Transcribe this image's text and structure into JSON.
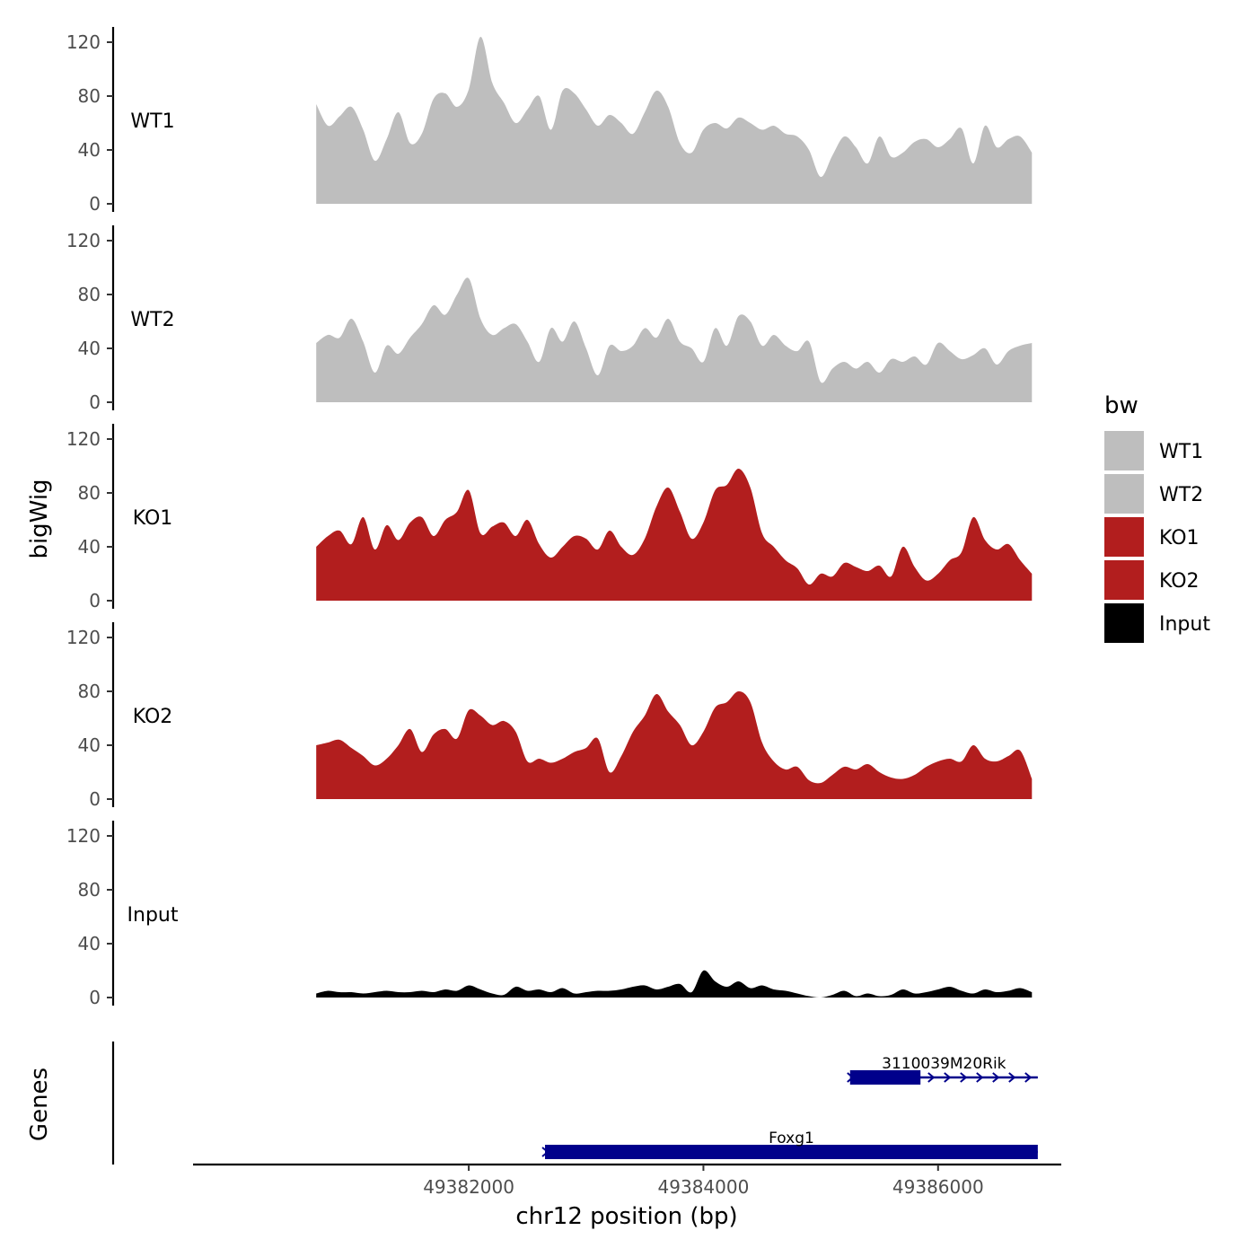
{
  "chart_data": {
    "type": "area",
    "ylabel": "bigWig",
    "xlabel": "chr12 position (bp)",
    "genes_label": "Genes",
    "xlim": [
      49379650,
      49387050
    ],
    "ylim": [
      0,
      125
    ],
    "y_ticks": [
      0,
      40,
      80,
      120
    ],
    "x_ticks": [
      49382000,
      49384000,
      49386000
    ],
    "legend": {
      "title": "bw",
      "placement": "right",
      "entries": [
        {
          "label": "WT1",
          "color": "#bebebe"
        },
        {
          "label": "WT2",
          "color": "#bebebe"
        },
        {
          "label": "KO1",
          "color": "#b21e1e"
        },
        {
          "label": "KO2",
          "color": "#b21e1e"
        },
        {
          "label": "Input",
          "color": "#000000"
        }
      ]
    },
    "x": [
      49380700,
      49380800,
      49380900,
      49381000,
      49381100,
      49381200,
      49381300,
      49381400,
      49381500,
      49381600,
      49381700,
      49381800,
      49381900,
      49382000,
      49382100,
      49382200,
      49382300,
      49382400,
      49382500,
      49382600,
      49382700,
      49382800,
      49382900,
      49383000,
      49383100,
      49383200,
      49383300,
      49383400,
      49383500,
      49383600,
      49383700,
      49383800,
      49383900,
      49384000,
      49384100,
      49384200,
      49384300,
      49384400,
      49384500,
      49384600,
      49384700,
      49384800,
      49384900,
      49385000,
      49385100,
      49385200,
      49385300,
      49385400,
      49385500,
      49385600,
      49385700,
      49385800,
      49385900,
      49386000,
      49386100,
      49386200,
      49386300,
      49386400,
      49386500,
      49386600,
      49386700,
      49386800
    ],
    "series": [
      {
        "name": "WT1",
        "color": "#bebebe",
        "values": [
          74,
          58,
          65,
          72,
          55,
          32,
          48,
          68,
          45,
          52,
          78,
          82,
          72,
          85,
          124,
          90,
          75,
          60,
          70,
          80,
          55,
          84,
          82,
          70,
          58,
          66,
          60,
          52,
          68,
          84,
          72,
          45,
          38,
          55,
          60,
          56,
          64,
          60,
          55,
          58,
          52,
          50,
          40,
          20,
          36,
          50,
          42,
          30,
          50,
          35,
          38,
          46,
          48,
          42,
          48,
          56,
          30,
          58,
          42,
          48,
          50,
          38
        ],
        "stroke": false
      },
      {
        "name": "WT2",
        "color": "#bebebe",
        "values": [
          44,
          50,
          48,
          62,
          45,
          22,
          42,
          36,
          48,
          58,
          72,
          65,
          80,
          92,
          62,
          50,
          55,
          58,
          45,
          30,
          55,
          45,
          60,
          40,
          20,
          42,
          38,
          42,
          55,
          48,
          62,
          45,
          40,
          30,
          55,
          42,
          64,
          60,
          42,
          50,
          42,
          38,
          45,
          15,
          25,
          30,
          25,
          30,
          22,
          32,
          30,
          34,
          28,
          44,
          38,
          32,
          35,
          40,
          28,
          38,
          42,
          44
        ]
      },
      {
        "name": "KO1",
        "color": "#b21e1e",
        "values": [
          40,
          48,
          52,
          42,
          62,
          38,
          56,
          45,
          58,
          62,
          48,
          60,
          66,
          82,
          50,
          55,
          58,
          48,
          60,
          42,
          32,
          40,
          48,
          46,
          38,
          52,
          40,
          34,
          46,
          70,
          84,
          66,
          46,
          58,
          82,
          86,
          98,
          84,
          50,
          40,
          30,
          24,
          12,
          20,
          18,
          28,
          25,
          22,
          26,
          18,
          40,
          25,
          15,
          20,
          30,
          36,
          62,
          45,
          38,
          42,
          30,
          20
        ]
      },
      {
        "name": "KO2",
        "color": "#b21e1e",
        "values": [
          40,
          42,
          44,
          38,
          32,
          25,
          30,
          40,
          52,
          35,
          48,
          52,
          45,
          66,
          62,
          55,
          58,
          50,
          28,
          30,
          27,
          30,
          35,
          38,
          45,
          20,
          32,
          50,
          62,
          78,
          65,
          55,
          40,
          50,
          68,
          72,
          80,
          72,
          42,
          28,
          22,
          24,
          14,
          12,
          18,
          24,
          22,
          26,
          20,
          16,
          15,
          18,
          24,
          28,
          30,
          28,
          40,
          30,
          28,
          32,
          36,
          15
        ]
      },
      {
        "name": "Input",
        "color": "#000000",
        "values": [
          3,
          5,
          4,
          4,
          3,
          4,
          5,
          4,
          4,
          5,
          4,
          6,
          5,
          9,
          6,
          3,
          2,
          8,
          5,
          6,
          4,
          7,
          3,
          4,
          5,
          5,
          6,
          8,
          9,
          6,
          8,
          10,
          4,
          20,
          12,
          8,
          12,
          7,
          9,
          6,
          5,
          3,
          1,
          0,
          2,
          5,
          1,
          3,
          1,
          2,
          6,
          3,
          4,
          6,
          8,
          5,
          3,
          6,
          4,
          5,
          7,
          4
        ]
      }
    ],
    "genes": [
      {
        "name": "3110039M20Rik",
        "start": 49385250,
        "end": 49386850,
        "thick_start": 49385250,
        "thick_end": 49385850,
        "strand": "+",
        "row": 1
      },
      {
        "name": "Foxg1",
        "start": 49382650,
        "end": 49386850,
        "thick_start": 49382650,
        "thick_end": 49386850,
        "strand": "+",
        "row": 2
      }
    ],
    "gene_color": "#00008b"
  }
}
